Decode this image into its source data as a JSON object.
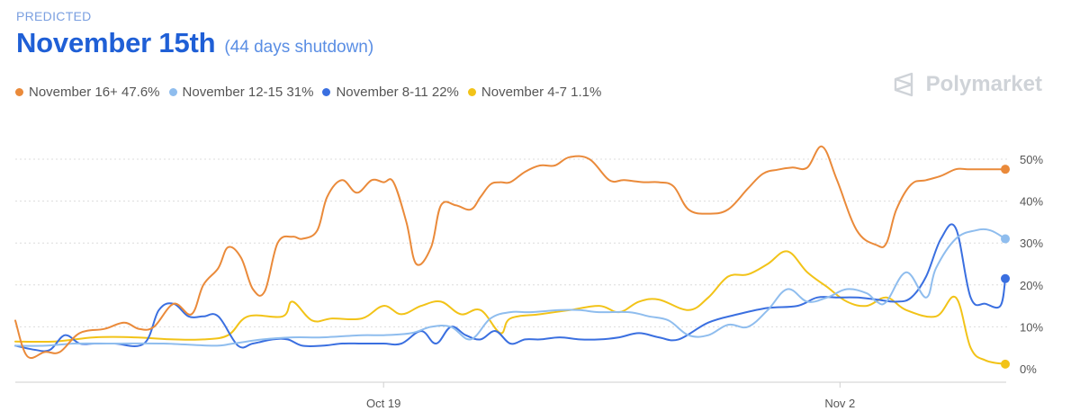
{
  "header": {
    "eyebrow": "PREDICTED",
    "title": "November 15th",
    "subtitle": "(44 days shutdown)"
  },
  "brand": {
    "name": "Polymarket",
    "icon": "polymarket-logo-icon"
  },
  "colors": {
    "orange": "#ea8a3a",
    "lightblue": "#8fbdee",
    "blue": "#3a6fe0",
    "yellow": "#f2c318",
    "grid": "#dcdcdc",
    "title": "#1f5fd6"
  },
  "legend": [
    {
      "label": "November 16+ 47.6%",
      "color": "#ea8a3a"
    },
    {
      "label": "November 12-15 31%",
      "color": "#8fbdee"
    },
    {
      "label": "November 8-11 22%",
      "color": "#3a6fe0"
    },
    {
      "label": "November 4-7 1.1%",
      "color": "#f2c318"
    }
  ],
  "chart_data": {
    "type": "line",
    "x_domain": [
      0,
      1
    ],
    "x_ticks": [
      {
        "label": "Oct 19",
        "x": 0.372
      },
      {
        "label": "Nov 2",
        "x": 0.833
      }
    ],
    "y_ticks": [
      "0%",
      "10%",
      "20%",
      "30%",
      "40%",
      "50%"
    ],
    "ylim": [
      0,
      52
    ],
    "grid": true,
    "series": [
      {
        "name": "November 16+",
        "color": "#ea8a3a",
        "end_label": "47.6%",
        "x": [
          0,
          0.012,
          0.03,
          0.045,
          0.065,
          0.09,
          0.11,
          0.125,
          0.14,
          0.16,
          0.178,
          0.19,
          0.205,
          0.215,
          0.228,
          0.24,
          0.252,
          0.265,
          0.28,
          0.29,
          0.305,
          0.315,
          0.33,
          0.345,
          0.36,
          0.372,
          0.382,
          0.395,
          0.405,
          0.42,
          0.43,
          0.445,
          0.46,
          0.47,
          0.48,
          0.49,
          0.5,
          0.515,
          0.53,
          0.545,
          0.56,
          0.58,
          0.6,
          0.615,
          0.635,
          0.65,
          0.665,
          0.68,
          0.7,
          0.72,
          0.74,
          0.755,
          0.77,
          0.785,
          0.8,
          0.815,
          0.83,
          0.85,
          0.87,
          0.88,
          0.89,
          0.905,
          0.92,
          0.935,
          0.95,
          0.962,
          0.975,
          0.985,
          1.0
        ],
        "values": [
          11.5,
          3,
          4,
          4,
          8.5,
          9.5,
          11,
          9.5,
          10,
          15.5,
          13,
          20,
          24,
          29,
          26.5,
          19,
          18.5,
          30,
          31.5,
          31,
          33,
          41,
          45,
          42,
          45,
          44.5,
          44.5,
          35,
          25,
          29,
          39,
          39,
          38,
          41,
          44,
          44.5,
          44.5,
          47,
          48.5,
          48.5,
          50.5,
          50,
          45,
          45,
          44.5,
          44.5,
          43.5,
          38,
          37,
          38,
          43,
          46.5,
          47.5,
          48,
          48,
          53,
          45,
          33,
          29.5,
          30,
          38,
          44,
          45,
          46,
          47.6,
          47.6,
          47.6,
          47.6,
          47.6
        ]
      },
      {
        "name": "November 12-15",
        "color": "#8fbdee",
        "end_label": "31%",
        "x": [
          0,
          0.03,
          0.06,
          0.1,
          0.15,
          0.2,
          0.22,
          0.25,
          0.28,
          0.31,
          0.35,
          0.372,
          0.4,
          0.42,
          0.44,
          0.46,
          0.48,
          0.5,
          0.52,
          0.55,
          0.57,
          0.59,
          0.62,
          0.64,
          0.66,
          0.68,
          0.7,
          0.72,
          0.74,
          0.76,
          0.78,
          0.8,
          0.82,
          0.84,
          0.86,
          0.87,
          0.88,
          0.9,
          0.92,
          0.93,
          0.95,
          0.97,
          0.985,
          1.0
        ],
        "values": [
          5.5,
          5.5,
          6,
          6,
          6,
          5.5,
          6,
          7,
          7.5,
          7.5,
          8,
          8,
          8.5,
          10,
          10,
          7,
          12,
          13.5,
          13.5,
          14,
          14,
          13.5,
          13.5,
          12.5,
          11.5,
          8,
          8,
          10.5,
          10,
          14,
          19,
          16,
          17,
          19,
          18,
          16,
          16,
          23,
          17,
          24,
          31,
          33,
          33,
          31
        ]
      },
      {
        "name": "November 8-11",
        "color": "#3a6fe0",
        "end_label": "22%",
        "x": [
          0,
          0.02,
          0.035,
          0.05,
          0.065,
          0.08,
          0.1,
          0.13,
          0.145,
          0.16,
          0.175,
          0.19,
          0.205,
          0.225,
          0.24,
          0.26,
          0.275,
          0.29,
          0.31,
          0.33,
          0.35,
          0.372,
          0.39,
          0.41,
          0.425,
          0.44,
          0.455,
          0.47,
          0.485,
          0.5,
          0.515,
          0.53,
          0.55,
          0.57,
          0.59,
          0.61,
          0.63,
          0.65,
          0.67,
          0.7,
          0.73,
          0.76,
          0.79,
          0.81,
          0.83,
          0.85,
          0.87,
          0.89,
          0.905,
          0.92,
          0.935,
          0.95,
          0.965,
          0.98,
          0.995,
          1.0
        ],
        "values": [
          5.5,
          4.5,
          4.5,
          8,
          6,
          6,
          6,
          6,
          14,
          15.5,
          12.5,
          12.5,
          12.5,
          5.5,
          6,
          7,
          7,
          5.5,
          5.5,
          6,
          6,
          6,
          6,
          9,
          6,
          10,
          8,
          7,
          9,
          6,
          7,
          7,
          7.5,
          7,
          7,
          7.5,
          8.5,
          7.5,
          7,
          11,
          13,
          14.5,
          15,
          17,
          17,
          17,
          16.5,
          16,
          17,
          22,
          31,
          33.5,
          17,
          15.5,
          15,
          21.5
        ]
      },
      {
        "name": "November 4-7",
        "color": "#f2c318",
        "end_label": "1.1%",
        "x": [
          0,
          0.04,
          0.08,
          0.12,
          0.16,
          0.19,
          0.215,
          0.235,
          0.27,
          0.28,
          0.3,
          0.32,
          0.35,
          0.372,
          0.39,
          0.41,
          0.43,
          0.45,
          0.47,
          0.49,
          0.5,
          0.53,
          0.56,
          0.59,
          0.61,
          0.63,
          0.65,
          0.68,
          0.7,
          0.72,
          0.74,
          0.76,
          0.78,
          0.8,
          0.82,
          0.84,
          0.86,
          0.88,
          0.9,
          0.93,
          0.95,
          0.965,
          0.98,
          1.0
        ],
        "values": [
          6.5,
          6.5,
          7.5,
          7.5,
          7,
          7,
          8,
          12.5,
          12.5,
          16,
          11.5,
          12,
          12,
          15,
          13,
          15,
          16,
          13,
          14,
          8.5,
          12,
          13,
          14,
          15,
          13.5,
          16,
          16.5,
          14,
          17,
          22,
          22.5,
          25,
          28,
          23,
          19.5,
          16,
          15,
          17,
          14,
          12.5,
          17,
          5,
          2,
          1.1
        ]
      }
    ]
  }
}
